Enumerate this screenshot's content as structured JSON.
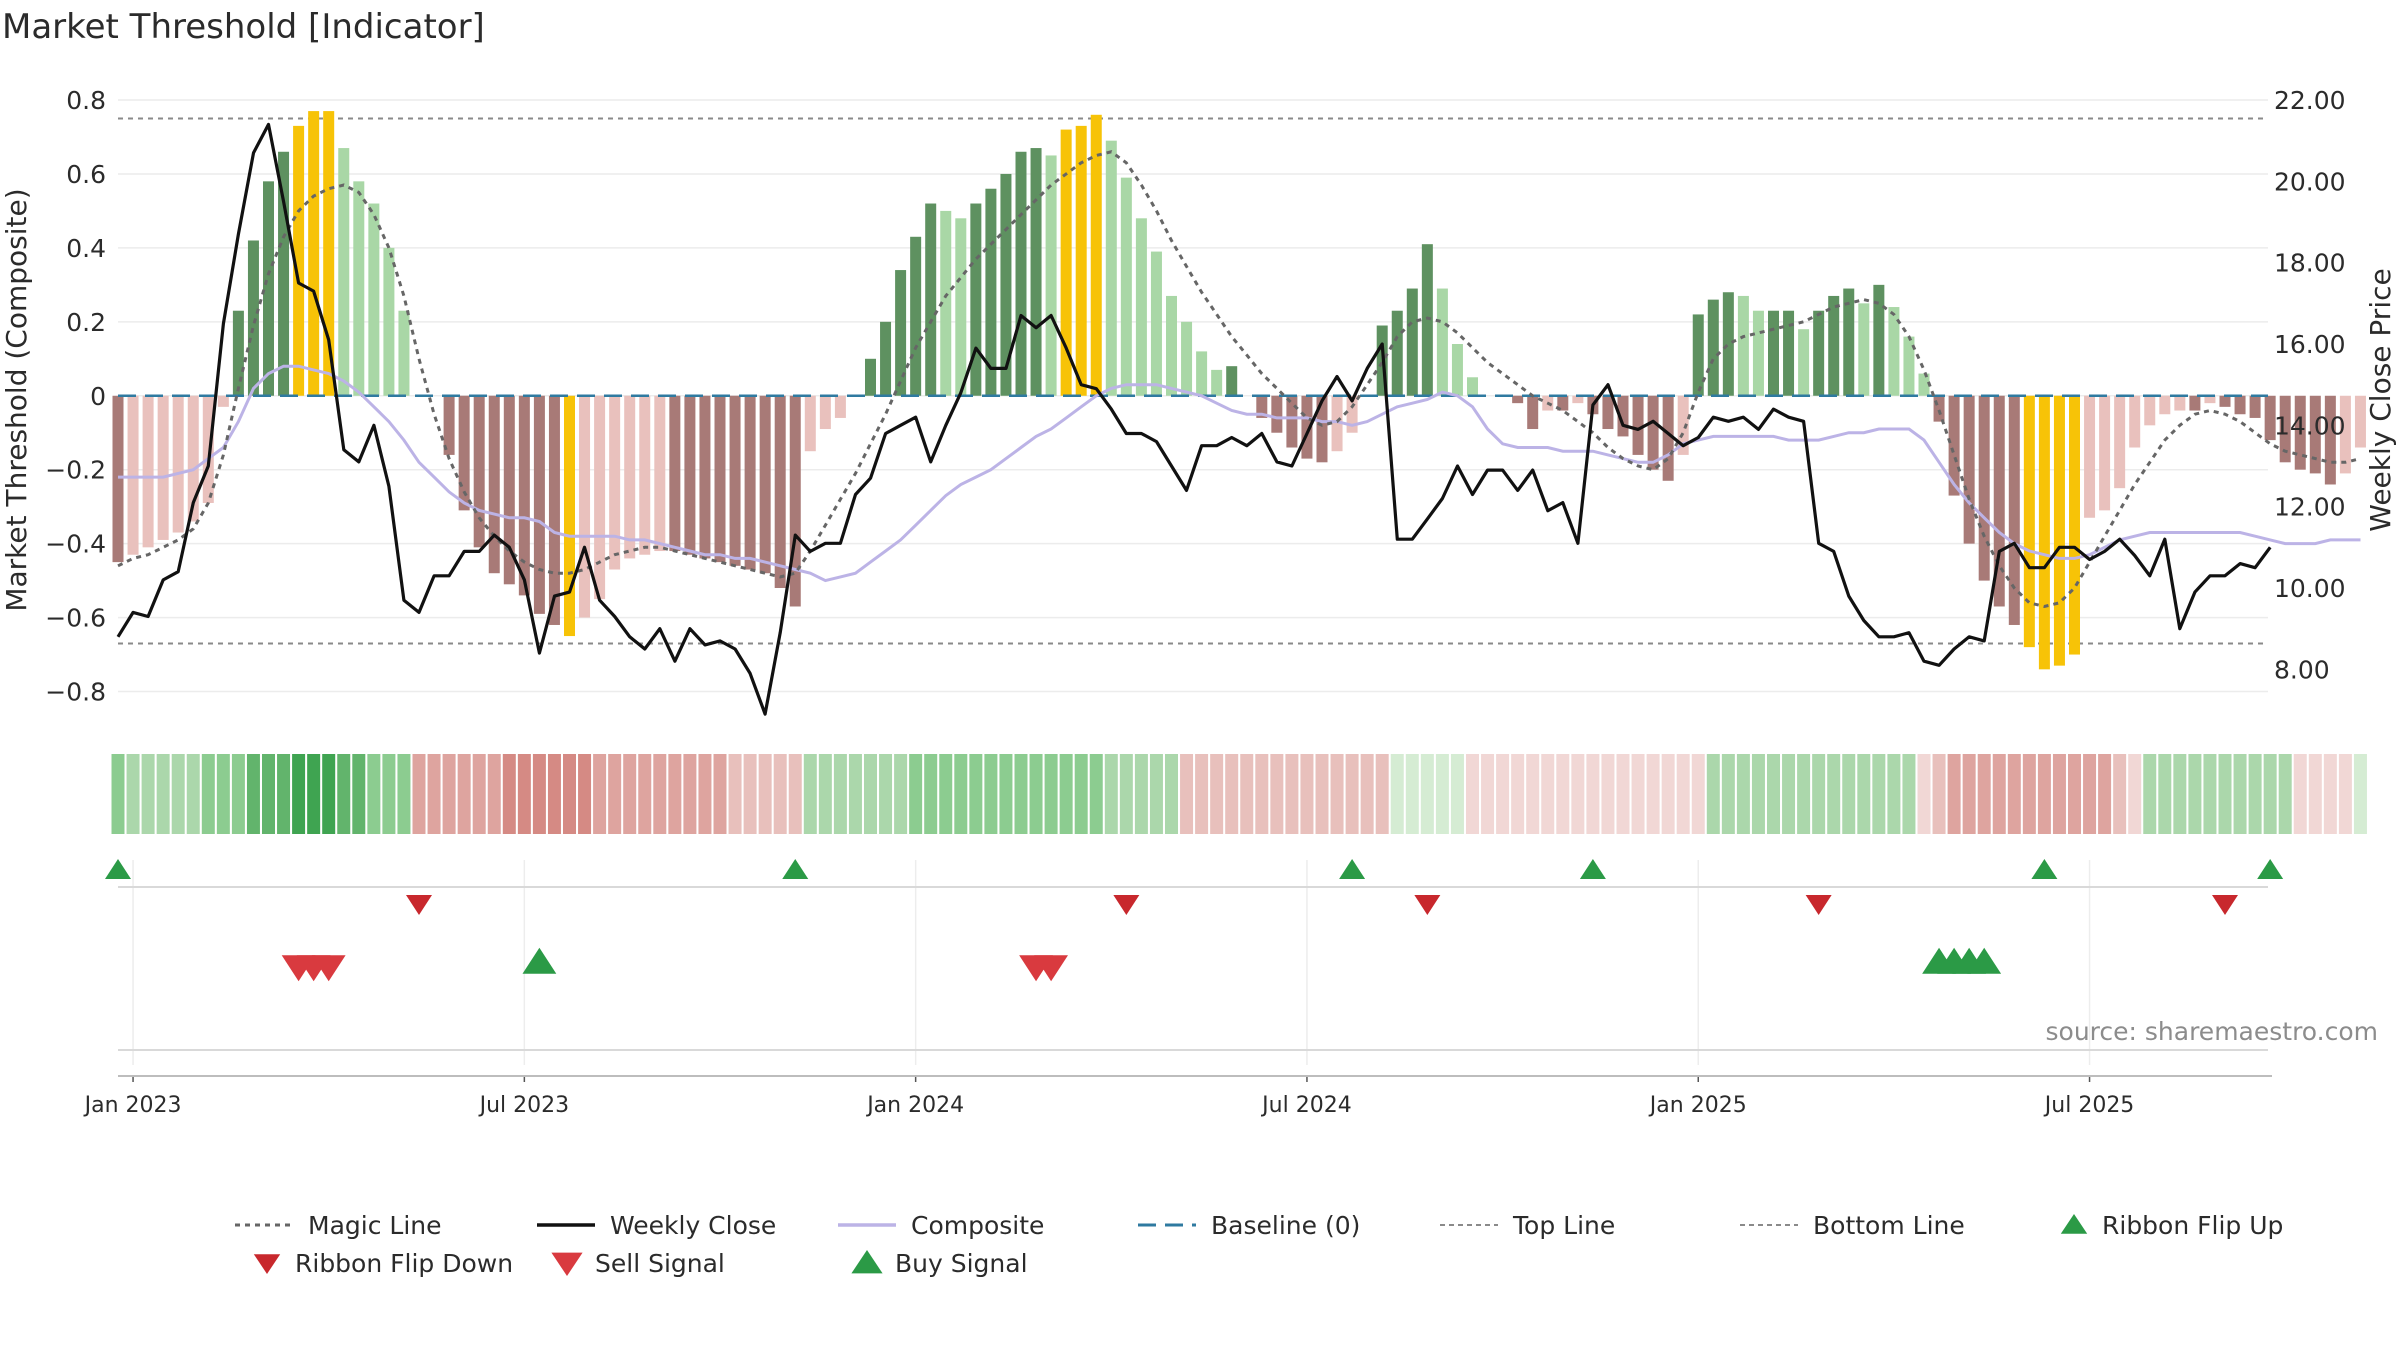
{
  "chart_data": {
    "type": "bar+line",
    "title": "Market Threshold [Indicator]",
    "ylabel_left": "Market Threshold (Composite)",
    "ylabel_right": "Weekly Close Price",
    "source": "source: sharemaestro.com",
    "ylim_left": [
      -0.85,
      0.8
    ],
    "ylim_right": [
      7.0,
      22.0
    ],
    "yticks_left": [
      {
        "v": 0.8,
        "label": "0.8"
      },
      {
        "v": 0.6,
        "label": "0.6"
      },
      {
        "v": 0.4,
        "label": "0.4"
      },
      {
        "v": 0.2,
        "label": "0.2"
      },
      {
        "v": 0,
        "label": "0"
      },
      {
        "v": -0.2,
        "label": "−0.2"
      },
      {
        "v": -0.4,
        "label": "−0.4"
      },
      {
        "v": -0.6,
        "label": "−0.6"
      },
      {
        "v": -0.8,
        "label": "−0.8"
      }
    ],
    "yticks_right": [
      {
        "v": 22,
        "label": "22.00"
      },
      {
        "v": 20,
        "label": "20.00"
      },
      {
        "v": 18,
        "label": "18.00"
      },
      {
        "v": 16,
        "label": "16.00"
      },
      {
        "v": 14,
        "label": "14.00"
      },
      {
        "v": 12,
        "label": "12.00"
      },
      {
        "v": 10,
        "label": "10.00"
      },
      {
        "v": 8,
        "label": "8.00"
      }
    ],
    "x_tick_labels": [
      {
        "week": 1,
        "label": "Jan 2023"
      },
      {
        "week": 27,
        "label": "Jul 2023"
      },
      {
        "week": 53,
        "label": "Jan 2024"
      },
      {
        "week": 79,
        "label": "Jul 2024"
      },
      {
        "week": 105,
        "label": "Jan 2025"
      },
      {
        "week": 131,
        "label": "Jul 2025"
      }
    ],
    "top_line": 0.75,
    "bottom_line": -0.67,
    "baseline": 0,
    "composite_bars": [
      -0.45,
      -0.43,
      -0.41,
      -0.39,
      -0.37,
      -0.34,
      -0.29,
      -0.03,
      0.23,
      0.42,
      0.58,
      0.66,
      0.73,
      0.77,
      0.77,
      0.67,
      0.58,
      0.52,
      0.4,
      0.23,
      0,
      0,
      -0.16,
      -0.31,
      -0.41,
      -0.48,
      -0.51,
      -0.54,
      -0.59,
      -0.62,
      -0.65,
      -0.6,
      -0.55,
      -0.47,
      -0.44,
      -0.43,
      -0.42,
      -0.42,
      -0.43,
      -0.44,
      -0.45,
      -0.46,
      -0.47,
      -0.48,
      -0.52,
      -0.57,
      -0.15,
      -0.09,
      -0.06,
      0,
      0.1,
      0.2,
      0.34,
      0.43,
      0.52,
      0.5,
      0.48,
      0.52,
      0.56,
      0.6,
      0.66,
      0.67,
      0.65,
      0.72,
      0.73,
      0.76,
      0.69,
      0.59,
      0.48,
      0.39,
      0.27,
      0.2,
      0.12,
      0.07,
      0.08,
      0,
      -0.06,
      -0.1,
      -0.14,
      -0.17,
      -0.18,
      -0.15,
      -0.1,
      0,
      0.19,
      0.23,
      0.29,
      0.41,
      0.29,
      0.14,
      0.05,
      0,
      0,
      -0.02,
      -0.09,
      -0.04,
      -0.04,
      -0.02,
      -0.05,
      -0.09,
      -0.11,
      -0.16,
      -0.2,
      -0.23,
      -0.16,
      0.22,
      0.26,
      0.28,
      0.27,
      0.23,
      0.23,
      0.23,
      0.18,
      0.23,
      0.27,
      0.29,
      0.25,
      0.3,
      0.24,
      0.16,
      0.06,
      -0.07,
      -0.27,
      -0.4,
      -0.5,
      -0.57,
      -0.62,
      -0.68,
      -0.74,
      -0.73,
      -0.7,
      -0.33,
      -0.31,
      -0.25,
      -0.14,
      -0.08,
      -0.05,
      -0.04,
      -0.04,
      -0.02,
      -0.03,
      -0.05,
      -0.06,
      -0.12,
      -0.18,
      -0.2,
      -0.21,
      -0.24,
      -0.21,
      -0.14
    ],
    "magic_line_composite": [
      -0.46,
      -0.44,
      -0.43,
      -0.41,
      -0.39,
      -0.36,
      -0.29,
      -0.16,
      0.02,
      0.19,
      0.33,
      0.43,
      0.5,
      0.54,
      0.56,
      0.57,
      0.55,
      0.49,
      0.4,
      0.27,
      0.1,
      -0.05,
      -0.17,
      -0.26,
      -0.33,
      -0.38,
      -0.42,
      -0.45,
      -0.47,
      -0.48,
      -0.48,
      -0.47,
      -0.45,
      -0.43,
      -0.42,
      -0.41,
      -0.41,
      -0.42,
      -0.43,
      -0.44,
      -0.45,
      -0.46,
      -0.47,
      -0.48,
      -0.49,
      -0.48,
      -0.42,
      -0.35,
      -0.28,
      -0.21,
      -0.13,
      -0.05,
      0.04,
      0.13,
      0.2,
      0.27,
      0.32,
      0.37,
      0.41,
      0.45,
      0.49,
      0.53,
      0.57,
      0.6,
      0.63,
      0.65,
      0.66,
      0.63,
      0.57,
      0.5,
      0.42,
      0.35,
      0.28,
      0.22,
      0.16,
      0.11,
      0.06,
      0.02,
      -0.02,
      -0.06,
      -0.08,
      -0.07,
      -0.03,
      0.03,
      0.09,
      0.16,
      0.2,
      0.21,
      0.2,
      0.17,
      0.13,
      0.09,
      0.06,
      0.03,
      0.0,
      -0.02,
      -0.04,
      -0.07,
      -0.1,
      -0.14,
      -0.17,
      -0.19,
      -0.2,
      -0.17,
      -0.1,
      0.01,
      0.1,
      0.14,
      0.16,
      0.17,
      0.18,
      0.19,
      0.2,
      0.22,
      0.24,
      0.25,
      0.26,
      0.25,
      0.22,
      0.16,
      0.07,
      -0.04,
      -0.16,
      -0.28,
      -0.38,
      -0.46,
      -0.52,
      -0.56,
      -0.57,
      -0.56,
      -0.52,
      -0.45,
      -0.38,
      -0.31,
      -0.24,
      -0.18,
      -0.12,
      -0.08,
      -0.05,
      -0.04,
      -0.05,
      -0.07,
      -0.1,
      -0.13,
      -0.15,
      -0.16,
      -0.17,
      -0.18,
      -0.18,
      -0.17
    ],
    "composite_line": [
      -0.22,
      -0.22,
      -0.22,
      -0.22,
      -0.21,
      -0.2,
      -0.17,
      -0.14,
      -0.07,
      0.02,
      0.06,
      0.08,
      0.08,
      0.07,
      0.06,
      0.04,
      0.01,
      -0.03,
      -0.07,
      -0.12,
      -0.18,
      -0.22,
      -0.26,
      -0.29,
      -0.31,
      -0.32,
      -0.33,
      -0.33,
      -0.34,
      -0.37,
      -0.38,
      -0.38,
      -0.38,
      -0.38,
      -0.39,
      -0.39,
      -0.4,
      -0.41,
      -0.42,
      -0.43,
      -0.43,
      -0.44,
      -0.44,
      -0.45,
      -0.46,
      -0.47,
      -0.48,
      -0.5,
      -0.49,
      -0.48,
      -0.45,
      -0.42,
      -0.39,
      -0.35,
      -0.31,
      -0.27,
      -0.24,
      -0.22,
      -0.2,
      -0.17,
      -0.14,
      -0.11,
      -0.09,
      -0.06,
      -0.03,
      0.0,
      0.02,
      0.03,
      0.03,
      0.03,
      0.02,
      0.01,
      0.0,
      -0.02,
      -0.04,
      -0.05,
      -0.05,
      -0.06,
      -0.06,
      -0.06,
      -0.07,
      -0.07,
      -0.08,
      -0.07,
      -0.05,
      -0.03,
      -0.02,
      -0.01,
      0.01,
      0.0,
      -0.03,
      -0.09,
      -0.13,
      -0.14,
      -0.14,
      -0.14,
      -0.15,
      -0.15,
      -0.15,
      -0.16,
      -0.17,
      -0.18,
      -0.18,
      -0.16,
      -0.13,
      -0.12,
      -0.11,
      -0.11,
      -0.11,
      -0.11,
      -0.11,
      -0.12,
      -0.12,
      -0.12,
      -0.11,
      -0.1,
      -0.1,
      -0.09,
      -0.09,
      -0.09,
      -0.12,
      -0.18,
      -0.24,
      -0.29,
      -0.33,
      -0.37,
      -0.4,
      -0.42,
      -0.43,
      -0.44,
      -0.44,
      -0.43,
      -0.41,
      -0.39,
      -0.38,
      -0.37,
      -0.37,
      -0.37,
      -0.37,
      -0.37,
      -0.37,
      -0.37,
      -0.38,
      -0.39,
      -0.4,
      -0.4,
      -0.4,
      -0.39,
      -0.39,
      -0.39
    ],
    "weekly_close": [
      8.8,
      9.4,
      9.3,
      10.2,
      10.4,
      12.1,
      13.0,
      16.5,
      18.7,
      20.7,
      21.4,
      19.5,
      17.5,
      17.3,
      16.1,
      13.4,
      13.1,
      14.0,
      12.5,
      9.7,
      9.4,
      10.3,
      10.3,
      10.9,
      10.9,
      11.3,
      11.0,
      10.2,
      8.4,
      9.8,
      9.9,
      11.0,
      9.7,
      9.3,
      8.8,
      8.5,
      9.0,
      8.2,
      9.0,
      8.6,
      8.7,
      8.5,
      7.9,
      6.9,
      8.9,
      11.3,
      10.9,
      11.1,
      11.1,
      12.3,
      12.7,
      13.8,
      14.0,
      14.2,
      13.1,
      14.0,
      14.8,
      15.9,
      15.4,
      15.4,
      16.7,
      16.4,
      16.7,
      15.9,
      15.0,
      14.9,
      14.4,
      13.8,
      13.8,
      13.6,
      13.0,
      12.4,
      13.5,
      13.5,
      13.7,
      13.5,
      13.8,
      13.1,
      13.0,
      13.8,
      14.6,
      15.2,
      14.6,
      15.4,
      16.0,
      11.2,
      11.2,
      11.7,
      12.2,
      13.0,
      12.3,
      12.9,
      12.9,
      12.4,
      12.9,
      11.9,
      12.1,
      11.1,
      14.5,
      15.0,
      14.0,
      13.9,
      14.1,
      13.8,
      13.5,
      13.7,
      14.2,
      14.1,
      14.2,
      13.9,
      14.4,
      14.2,
      14.1,
      11.1,
      10.9,
      9.8,
      9.2,
      8.8,
      8.8,
      8.9,
      8.2,
      8.1,
      8.5,
      8.8,
      8.7,
      10.9,
      11.1,
      10.5,
      10.5,
      11.0,
      11.0,
      10.7,
      10.9,
      11.2,
      10.8,
      10.3,
      11.2,
      9.0,
      9.9,
      10.3,
      10.3,
      10.6,
      10.5,
      11.0
    ],
    "ribbon": [
      "g3",
      "g2",
      "g2",
      "g2",
      "g2",
      "g2",
      "g3",
      "g3",
      "g3",
      "g4",
      "g4",
      "g4",
      "g5",
      "g5",
      "g5",
      "g4",
      "g4",
      "g3",
      "g3",
      "g3",
      "r3",
      "r3",
      "r3",
      "r3",
      "r3",
      "r3",
      "r4",
      "r4",
      "r4",
      "r4",
      "r4",
      "r4",
      "r3",
      "r3",
      "r3",
      "r3",
      "r3",
      "r3",
      "r3",
      "r3",
      "r3",
      "r2",
      "r2",
      "r2",
      "r2",
      "r2",
      "g2",
      "g2",
      "g2",
      "g2",
      "g2",
      "g2",
      "g2",
      "g3",
      "g3",
      "g3",
      "g3",
      "g3",
      "g3",
      "g3",
      "g3",
      "g3",
      "g3",
      "g3",
      "g3",
      "g3",
      "g2",
      "g2",
      "g2",
      "g2",
      "g2",
      "r2",
      "r2",
      "r2",
      "r2",
      "r2",
      "r2",
      "r2",
      "r2",
      "r2",
      "r2",
      "r2",
      "r2",
      "r2",
      "r2",
      "g1",
      "g1",
      "g1",
      "g1",
      "g1",
      "r1",
      "r1",
      "r1",
      "r1",
      "r1",
      "r1",
      "r1",
      "r1",
      "r1",
      "r1",
      "r1",
      "r1",
      "r1",
      "r1",
      "r1",
      "r1",
      "g2",
      "g2",
      "g2",
      "g2",
      "g2",
      "g2",
      "g2",
      "g2",
      "g2",
      "g2",
      "g2",
      "g2",
      "g2",
      "g2",
      "r1",
      "r2",
      "r3",
      "r3",
      "r3",
      "r3",
      "r3",
      "r3",
      "r3",
      "r3",
      "r3",
      "r3",
      "r3",
      "r2",
      "r1",
      "g2",
      "g2",
      "g2",
      "g2",
      "g2",
      "g2",
      "g2",
      "g2",
      "g2",
      "g2",
      "r1",
      "r1",
      "r1",
      "r1",
      "g1"
    ],
    "ribbon_flip_up_weeks": [
      0,
      45,
      82,
      98,
      128,
      143
    ],
    "ribbon_flip_down_weeks": [
      20,
      67,
      87,
      113,
      140
    ],
    "sell_signal_weeks": [
      12,
      13,
      14,
      61,
      62
    ],
    "buy_signal_weeks": [
      28,
      121,
      122,
      123,
      124
    ],
    "legend": [
      {
        "key": "magic",
        "label": "Magic Line"
      },
      {
        "key": "close",
        "label": "Weekly Close"
      },
      {
        "key": "composite",
        "label": "Composite"
      },
      {
        "key": "baseline",
        "label": "Baseline (0)"
      },
      {
        "key": "top",
        "label": "Top Line"
      },
      {
        "key": "bottom",
        "label": "Bottom Line"
      },
      {
        "key": "flipup",
        "label": "Ribbon Flip Up"
      },
      {
        "key": "flipdown",
        "label": "Ribbon Flip Down"
      },
      {
        "key": "sell",
        "label": "Sell Signal"
      },
      {
        "key": "buy",
        "label": "Buy Signal"
      }
    ],
    "colors": {
      "dark_green": "#5e9160",
      "light_green": "#a9d7a6",
      "dark_red": "#a87a77",
      "light_red": "#e9c1bd",
      "gold": "#f7c307",
      "close": "#111111",
      "composite": "#bcb3e6",
      "magic": "#666666",
      "baseline": "#2f7aa0",
      "threshold": "#8a8a8a",
      "buy": "#2b9a46",
      "sell": "#d93a3f",
      "flip_down": "#c8282d",
      "ribbon_g1": "#d5ecd3",
      "ribbon_g2": "#abd7ab",
      "ribbon_g3": "#8ccc90",
      "ribbon_g4": "#62b46c",
      "ribbon_g5": "#3fa451",
      "ribbon_r1": "#f1d7d5",
      "ribbon_r2": "#e8c0bc",
      "ribbon_r3": "#dea49f",
      "ribbon_r4": "#d58a84"
    }
  }
}
